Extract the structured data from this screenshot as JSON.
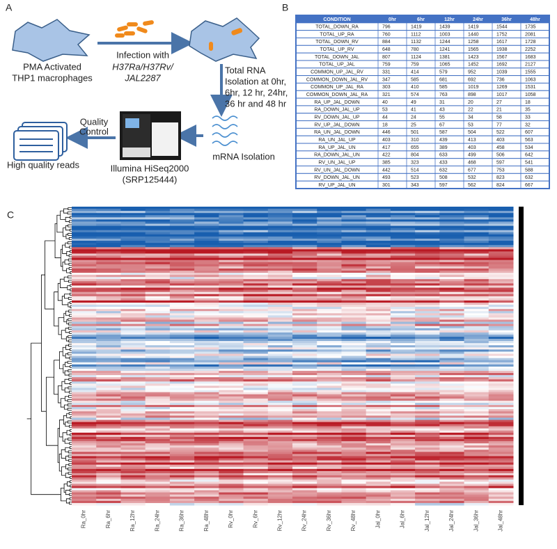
{
  "panel_a": {
    "label": "A",
    "cell_label": [
      "PMA Activated",
      "THP1 macrophages"
    ],
    "infection": [
      "Infection with",
      "H37Ra/H37Rv/",
      "JAL2287"
    ],
    "rna": [
      "Total RNA",
      "Isolation at 0hr,",
      "6hr, 12 hr, 24hr,",
      "36 hr and 48 hr"
    ],
    "mrna": "mRNA Isolation",
    "illumina": [
      "Illumina HiSeq2000",
      "(SRP125444)"
    ],
    "quality": [
      "Quality",
      "Control"
    ],
    "reads": "High quality reads"
  },
  "panel_b": {
    "label": "B",
    "table": {
      "header": [
        "CONDITION",
        "0hr",
        "6hr",
        "12hr",
        "24hr",
        "36hr",
        "48hr"
      ],
      "rows": [
        [
          "TOTAL_DOWN_RA",
          796,
          1419,
          1439,
          1419,
          1544,
          1735
        ],
        [
          "TOTAL_UP_RA",
          760,
          1112,
          1003,
          1440,
          1752,
          2081
        ],
        [
          "TOTAL_DOWN_RV",
          884,
          1132,
          1244,
          1258,
          1617,
          1728
        ],
        [
          "TOTAL_UP_RV",
          648,
          780,
          1241,
          1565,
          1938,
          2252
        ],
        [
          "TOTAL_DOWN_JAL",
          807,
          1124,
          1381,
          1423,
          1567,
          1683
        ],
        [
          "TOTAL_UP_JAL",
          759,
          759,
          1065,
          1452,
          1692,
          2127
        ],
        [
          "COMMON_UP_JAL_RV",
          331,
          414,
          579,
          952,
          1039,
          1555
        ],
        [
          "COMMON_DOWN_JAL_RV",
          347,
          585,
          681,
          692,
          736,
          1063
        ],
        [
          "COMMON_UP_JAL_RA",
          303,
          410,
          585,
          1019,
          1269,
          1531
        ],
        [
          "COMMON_DOWN_JAL_RA",
          321,
          574,
          763,
          898,
          1017,
          1058
        ],
        [
          "RA_UP_JAL_DOWN",
          40,
          49,
          31,
          20,
          27,
          18
        ],
        [
          "RA_DOWN_JAL_UP",
          53,
          41,
          43,
          22,
          21,
          35
        ],
        [
          "RV_DOWN_JAL_UP",
          44,
          24,
          55,
          34,
          58,
          33
        ],
        [
          "RV_UP_JAL_DOWN",
          18,
          25,
          67,
          53,
          77,
          32
        ],
        [
          "RA_UN_JAL_DOWN",
          446,
          501,
          587,
          504,
          522,
          607
        ],
        [
          "RA_UN_JAL_UP",
          403,
          310,
          439,
          413,
          403,
          563
        ],
        [
          "RA_UP_JAL_UN",
          417,
          655,
          389,
          403,
          458,
          534
        ],
        [
          "RA_DOWN_JAL_UN",
          422,
          804,
          633,
          499,
          506,
          642
        ],
        [
          "RV_UN_JAL_UP",
          385,
          323,
          433,
          468,
          597,
          541
        ],
        [
          "RV_UN_JAL_DOWN",
          442,
          514,
          632,
          677,
          753,
          588
        ],
        [
          "RV_DOWN_JAL_UN",
          493,
          523,
          508,
          532,
          823,
          632
        ],
        [
          "RV_UP_JAL_UN",
          301,
          343,
          597,
          562,
          824,
          667
        ]
      ]
    }
  },
  "panel_c": {
    "label": "C",
    "columns": [
      "Ra_0hr",
      "Ra_6hr",
      "Ra_12hr",
      "Ra_24hr",
      "Ra_36hr",
      "Ra_48hr",
      "Rv_0hr",
      "Rv_6hr",
      "Rv_12hr",
      "Rv_24hr",
      "Rv_36hr",
      "Rv_48hr",
      "Jal_0hr",
      "Jal_6hr",
      "Jal_12hr",
      "Jal_24hr",
      "Jal_36hr",
      "Jal_48hr"
    ]
  }
}
